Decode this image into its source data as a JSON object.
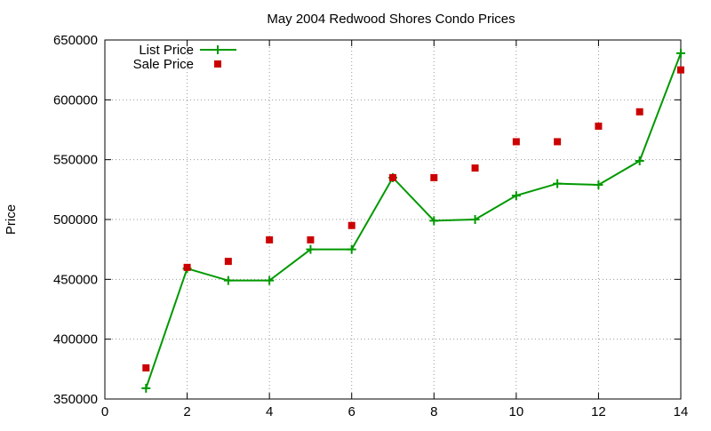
{
  "chart_data": {
    "type": "line",
    "title": "May 2004 Redwood Shores Condo Prices",
    "xlabel": "",
    "ylabel": "Price",
    "xlim": [
      0,
      14
    ],
    "ylim": [
      350000,
      650000
    ],
    "xticks": [
      0,
      2,
      4,
      6,
      8,
      10,
      12,
      14
    ],
    "yticks": [
      350000,
      400000,
      450000,
      500000,
      550000,
      600000,
      650000
    ],
    "grid": true,
    "legend_position": "top-left",
    "series": [
      {
        "name": "List Price",
        "style": "lines+points",
        "marker": "plus",
        "color": "#009900",
        "points": [
          [
            1,
            359000
          ],
          [
            2,
            459000
          ],
          [
            3,
            449000
          ],
          [
            4,
            449000
          ],
          [
            5,
            475000
          ],
          [
            6,
            475000
          ],
          [
            7,
            535000
          ],
          [
            8,
            499000
          ],
          [
            9,
            500000
          ],
          [
            10,
            520000
          ],
          [
            11,
            530000
          ],
          [
            12,
            529000
          ],
          [
            13,
            549000
          ],
          [
            14,
            639000
          ]
        ]
      },
      {
        "name": "Sale Price",
        "style": "points",
        "marker": "square",
        "color": "#cc0000",
        "points": [
          [
            1,
            376000
          ],
          [
            2,
            460000
          ],
          [
            3,
            465000
          ],
          [
            4,
            483000
          ],
          [
            5,
            483000
          ],
          [
            6,
            495000
          ],
          [
            7,
            535000
          ],
          [
            8,
            535000
          ],
          [
            9,
            543000
          ],
          [
            10,
            565000
          ],
          [
            11,
            565000
          ],
          [
            12,
            578000
          ],
          [
            13,
            590000
          ],
          [
            14,
            625000
          ]
        ]
      }
    ]
  }
}
